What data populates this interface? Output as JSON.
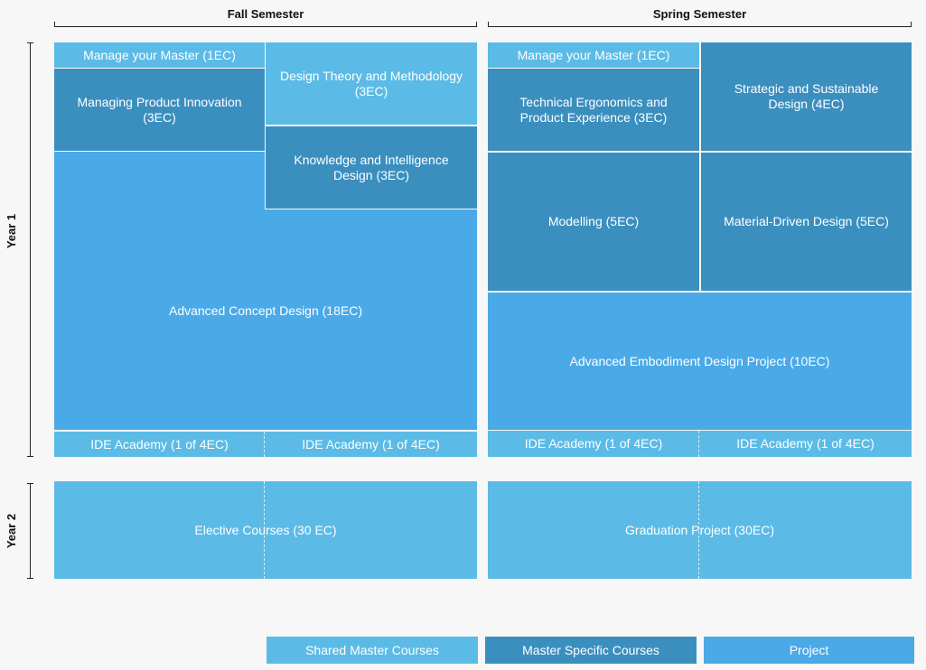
{
  "semesters": {
    "fall": "Fall Semester",
    "spring": "Spring Semester"
  },
  "years": {
    "year1": "Year 1",
    "year2": "Year 2"
  },
  "fall": {
    "manage_master": "Manage your Master (1EC)",
    "managing_product": "Managing Product Innovation (3EC)",
    "design_theory": "Design Theory and Methodology (3EC)",
    "knowledge": "Knowledge and Intelligence Design (3EC)",
    "advanced_concept": "Advanced Concept Design (18EC)",
    "ide_academy_1": "IDE Academy (1 of 4EC)",
    "ide_academy_2": "IDE Academy (1 of 4EC)",
    "elective": "Elective Courses (30 EC)"
  },
  "spring": {
    "manage_master": "Manage your Master (1EC)",
    "technical": "Technical Ergonomics and Product Experience (3EC)",
    "strategic": "Strategic and Sustainable Design (4EC)",
    "modelling": "Modelling (5EC)",
    "material": "Material-Driven Design (5EC)",
    "embodiment": "Advanced Embodiment Design Project (10EC)",
    "ide_academy_1": "IDE Academy (1 of 4EC)",
    "ide_academy_2": "IDE Academy (1 of 4EC)",
    "graduation": "Graduation Project (30EC)"
  },
  "legend": {
    "shared": "Shared Master Courses",
    "specific": "Master Specific Courses",
    "project": "Project"
  },
  "colors": {
    "shared": "#5bbbe6",
    "specific": "#3b8fbf",
    "project": "#4aa9e7"
  }
}
